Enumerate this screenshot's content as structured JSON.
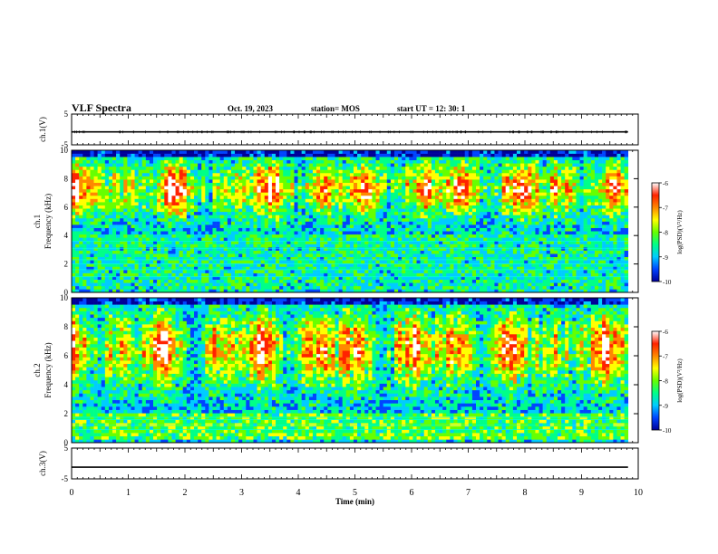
{
  "header": {
    "title": "VLF Spectra",
    "date": "Oct. 19, 2023",
    "station": "station= MOS",
    "start_ut": "start  UT =   12: 30: 1"
  },
  "chart_data": [
    {
      "type": "line",
      "panel": "ch1-voltage",
      "ylabel": "ch.1(V)",
      "ylim": [
        -5,
        5
      ],
      "yticks": [
        "5",
        "-5"
      ],
      "xlim": [
        0,
        10
      ],
      "series": [
        {
          "x": [
            0,
            9.82
          ],
          "y": [
            -0.8,
            -0.8
          ]
        }
      ]
    },
    {
      "type": "heatmap",
      "panel": "ch1-spectrogram",
      "ylabel_line1": "ch.1",
      "ylabel_line2": "Frequency (kHz)",
      "ylim": [
        0,
        10
      ],
      "yticks": [
        "0",
        "2",
        "4",
        "6",
        "8",
        "10"
      ],
      "xlim": [
        0,
        10
      ],
      "data_end_min": 9.82,
      "colorbar": {
        "label": "log(PSD)(V²/Hz)",
        "range": [
          -10,
          -6
        ],
        "ticks": [
          "-6",
          "-7",
          "-8",
          "-9",
          "-10"
        ],
        "colors": [
          "#000099",
          "#0044ff",
          "#00ccff",
          "#00ff88",
          "#66ff00",
          "#ffff00",
          "#ff8800",
          "#ff2200",
          "#ffffff"
        ]
      }
    },
    {
      "type": "heatmap",
      "panel": "ch2-spectrogram",
      "ylabel_line1": "ch.2",
      "ylabel_line2": "Frequency (kHz)",
      "ylim": [
        0,
        10
      ],
      "yticks": [
        "0",
        "2",
        "4",
        "6",
        "8",
        "10"
      ],
      "xlim": [
        0,
        10
      ],
      "data_end_min": 9.82,
      "colorbar": {
        "label": "log(PSD)(V²/Hz)",
        "range": [
          -10,
          -6
        ],
        "ticks": [
          "-6",
          "-7",
          "-8",
          "-9",
          "-10"
        ],
        "colors": [
          "#000099",
          "#0044ff",
          "#00ccff",
          "#00ff88",
          "#66ff00",
          "#ffff00",
          "#ff8800",
          "#ff2200",
          "#ffffff"
        ]
      }
    },
    {
      "type": "line",
      "panel": "ch3-voltage",
      "ylabel": "ch.3(V)",
      "ylim": [
        -5,
        5
      ],
      "yticks": [
        "5",
        "-5"
      ],
      "xlim": [
        0,
        10
      ],
      "xlabel": "Time  (min)",
      "xticks": [
        "0",
        "1",
        "2",
        "3",
        "4",
        "5",
        "6",
        "7",
        "8",
        "9",
        "10"
      ],
      "series": [
        {
          "x": [
            0,
            9.82
          ],
          "y": [
            -1.2,
            -1.2
          ]
        }
      ]
    }
  ]
}
